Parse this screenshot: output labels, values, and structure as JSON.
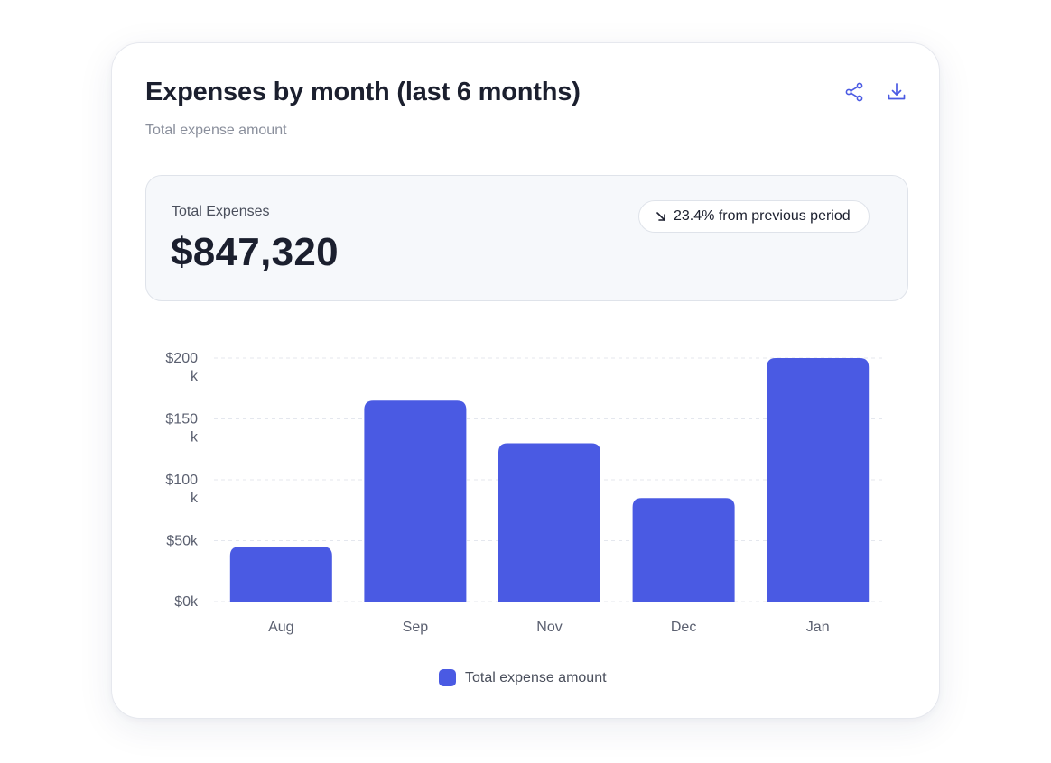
{
  "card": {
    "title": "Expenses by month (last 6 months)",
    "subtitle": "Total expense amount",
    "actions": {
      "share_icon": "share-icon",
      "download_icon": "download-icon"
    }
  },
  "summary": {
    "label": "Total Expenses",
    "value": "$847,320",
    "change": {
      "icon": "arrow-down-right-icon",
      "text": "23.4% from previous period"
    }
  },
  "colors": {
    "accent": "#4a5ae3",
    "text_primary": "#1b1f2e",
    "text_secondary": "#8a8f9c"
  },
  "chart_data": {
    "type": "bar",
    "categories": [
      "Aug",
      "Sep",
      "Nov",
      "Dec",
      "Jan"
    ],
    "series": [
      {
        "name": "Total expense amount",
        "values": [
          45,
          165,
          130,
          85,
          200
        ],
        "color": "#4a5ae3"
      }
    ],
    "yticks": [
      0,
      50,
      100,
      150,
      200
    ],
    "ytick_labels": [
      "$0k",
      "$50k",
      "$100\nk",
      "$150\nk",
      "$200\nk"
    ],
    "ylim": [
      0,
      200
    ],
    "grid": true,
    "legend": "bottom-center"
  }
}
